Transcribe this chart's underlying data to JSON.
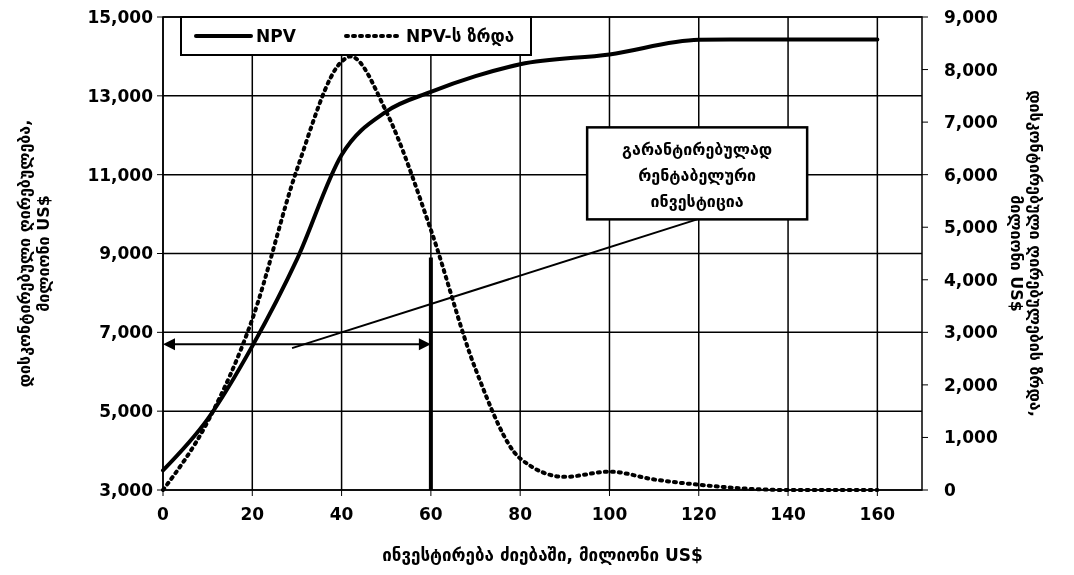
{
  "chart_data": {
    "type": "line",
    "xlabel": "ინვესტირება ძიებაში, მილიონი US$",
    "ylabel": "დისკონტირებული ღირებულება, მილიონი US$",
    "y2label": "დისკონტირებული ღირებულების ზრდა, მილიონი US$",
    "xlim": [
      0,
      170
    ],
    "xticks": [
      0,
      20,
      40,
      60,
      80,
      100,
      120,
      140,
      160
    ],
    "ylim": [
      3000,
      15000
    ],
    "yticks": [
      {
        "value": 3000,
        "label": "3,000"
      },
      {
        "value": 5000,
        "label": "5,000"
      },
      {
        "value": 7000,
        "label": "7,000"
      },
      {
        "value": 9000,
        "label": "9,000"
      },
      {
        "value": 11000,
        "label": "11,000"
      },
      {
        "value": 13000,
        "label": "13,000"
      },
      {
        "value": 15000,
        "label": "15,000"
      }
    ],
    "y2lim": [
      0,
      9000
    ],
    "y2ticks": [
      0,
      {
        "value": 1000,
        "label": "1,000"
      },
      {
        "value": 2000,
        "label": "2,000"
      },
      {
        "value": 3000,
        "label": "3,000"
      },
      {
        "value": 4000,
        "label": "4,000"
      },
      {
        "value": 5000,
        "label": "5,000"
      },
      {
        "value": 6000,
        "label": "6,000"
      },
      {
        "value": 7000,
        "label": "7,000"
      },
      {
        "value": 8000,
        "label": "8,000"
      },
      {
        "value": 9000,
        "label": "9,000"
      }
    ],
    "grid": true,
    "legend": "top left",
    "series": [
      {
        "name": "NPV",
        "color": "#000000",
        "line_style": "solid",
        "x": [
          0,
          10,
          20,
          30,
          40,
          50,
          60,
          70,
          80,
          100,
          120,
          130,
          160
        ],
        "values": [
          3500,
          4800,
          6650,
          8850,
          11500,
          12600,
          13100,
          13500,
          13800,
          14050,
          14420,
          14430,
          14430
        ]
      },
      {
        "name": "NPV-ს ზრდა",
        "color": "#000000",
        "line_style": "dotted",
        "axis": "y2",
        "x": [
          0,
          10,
          20,
          30,
          40,
          42,
          50,
          60,
          70,
          80,
          90,
          100,
          110,
          120,
          140,
          160
        ],
        "values": [
          0,
          1300,
          3250,
          6100,
          8150,
          8250,
          7200,
          4950,
          2300,
          600,
          250,
          350,
          200,
          100,
          0,
          0
        ]
      }
    ],
    "annotations": [
      "გარანტირებულად რენტაბელური ინვესტიცია"
    ]
  }
}
